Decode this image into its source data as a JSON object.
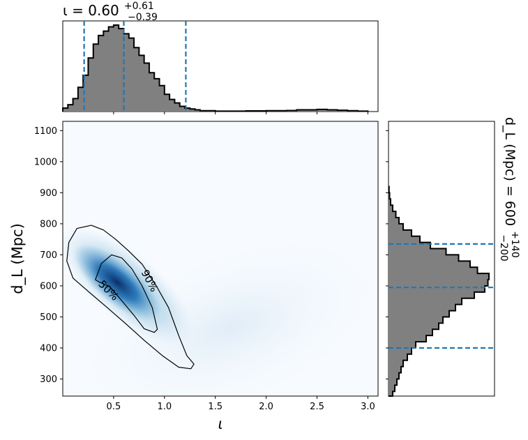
{
  "chart_data": [
    {
      "type": "histogram",
      "variable": "ι",
      "title": {
        "main": "ι = 0.60",
        "sup": "+0.61",
        "sub": "−0.39"
      },
      "median": 0.6,
      "quantiles": [
        0.21,
        0.6,
        1.21
      ],
      "xlim": [
        0.0,
        3.1
      ],
      "bins": [
        0.0,
        0.05,
        0.1,
        0.15,
        0.2,
        0.25,
        0.3,
        0.35,
        0.4,
        0.45,
        0.5,
        0.55,
        0.6,
        0.65,
        0.7,
        0.75,
        0.8,
        0.85,
        0.9,
        0.95,
        1.0,
        1.05,
        1.1,
        1.15,
        1.2,
        1.25,
        1.3,
        1.35,
        1.4,
        1.5,
        1.6,
        1.8,
        2.0,
        2.2,
        2.3,
        2.4,
        2.5,
        2.6,
        2.7,
        2.8,
        2.9,
        3.0
      ],
      "counts": [
        0.04,
        0.08,
        0.15,
        0.28,
        0.42,
        0.62,
        0.78,
        0.88,
        0.93,
        0.98,
        1.0,
        0.96,
        0.9,
        0.85,
        0.74,
        0.65,
        0.56,
        0.45,
        0.38,
        0.3,
        0.2,
        0.14,
        0.1,
        0.06,
        0.04,
        0.03,
        0.02,
        0.01,
        0.01,
        0.005,
        0.005,
        0.008,
        0.01,
        0.012,
        0.02,
        0.02,
        0.025,
        0.02,
        0.015,
        0.01,
        0.005
      ]
    },
    {
      "type": "heatmap",
      "xlabel": "ι",
      "ylabel": "d_L (Mpc)",
      "xlim": [
        0.0,
        3.1
      ],
      "ylim": [
        245,
        1130
      ],
      "xticks": [
        "0.5",
        "1.0",
        "1.5",
        "2.0",
        "2.5",
        "3.0"
      ],
      "xtick_values": [
        0.5,
        1.0,
        1.5,
        2.0,
        2.5,
        3.0
      ],
      "yticks": [
        "300",
        "400",
        "500",
        "600",
        "700",
        "800",
        "900",
        "1000",
        "1100"
      ],
      "ytick_values": [
        300,
        400,
        500,
        600,
        700,
        800,
        900,
        1000,
        1100
      ],
      "density_peak": {
        "iota": 0.55,
        "dL": 600
      },
      "contours": [
        {
          "label": "50%",
          "points": [
            [
              0.32,
              620
            ],
            [
              0.38,
              672
            ],
            [
              0.48,
              700
            ],
            [
              0.58,
              690
            ],
            [
              0.68,
              655
            ],
            [
              0.78,
              600
            ],
            [
              0.88,
              530
            ],
            [
              0.93,
              460
            ],
            [
              0.9,
              450
            ],
            [
              0.8,
              462
            ],
            [
              0.7,
              505
            ],
            [
              0.58,
              552
            ],
            [
              0.46,
              598
            ],
            [
              0.36,
              612
            ]
          ]
        },
        {
          "label": "90%",
          "points": [
            [
              0.04,
              680
            ],
            [
              0.06,
              740
            ],
            [
              0.14,
              785
            ],
            [
              0.28,
              795
            ],
            [
              0.4,
              780
            ],
            [
              0.52,
              750
            ],
            [
              0.64,
              715
            ],
            [
              0.78,
              670
            ],
            [
              0.92,
              600
            ],
            [
              1.04,
              530
            ],
            [
              1.14,
              440
            ],
            [
              1.22,
              375
            ],
            [
              1.29,
              348
            ],
            [
              1.26,
              333
            ],
            [
              1.14,
              338
            ],
            [
              0.98,
              375
            ],
            [
              0.8,
              425
            ],
            [
              0.62,
              478
            ],
            [
              0.42,
              535
            ],
            [
              0.24,
              585
            ],
            [
              0.1,
              625
            ]
          ]
        }
      ]
    },
    {
      "type": "histogram",
      "orientation": "horizontal",
      "variable": "d_L",
      "title": {
        "main": "d_L (Mpc) = 600",
        "sup": "+140",
        "sub": "−200"
      },
      "median": 600,
      "quantiles": [
        400,
        595,
        735
      ],
      "ylim": [
        245,
        1130
      ],
      "bins": [
        245,
        260,
        280,
        300,
        320,
        340,
        360,
        380,
        400,
        420,
        440,
        460,
        480,
        500,
        520,
        540,
        560,
        580,
        600,
        620,
        640,
        660,
        680,
        700,
        720,
        740,
        760,
        780,
        800,
        820,
        840,
        860,
        880,
        900,
        920
      ],
      "counts": [
        0.04,
        0.06,
        0.08,
        0.1,
        0.12,
        0.14,
        0.18,
        0.22,
        0.26,
        0.36,
        0.42,
        0.48,
        0.52,
        0.58,
        0.64,
        0.7,
        0.82,
        0.92,
        0.95,
        0.96,
        0.85,
        0.78,
        0.67,
        0.55,
        0.4,
        0.3,
        0.22,
        0.14,
        0.1,
        0.07,
        0.04,
        0.02,
        0.01,
        0.005
      ]
    }
  ]
}
